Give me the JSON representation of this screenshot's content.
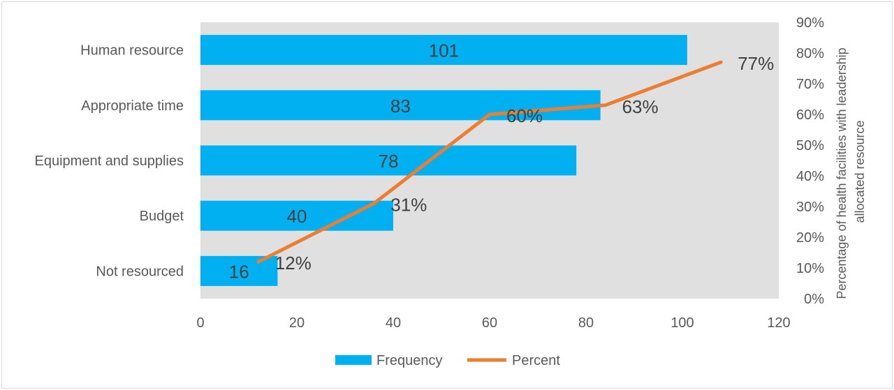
{
  "chart_data": {
    "type": "bar",
    "orientation": "horizontal",
    "categories": [
      "Not resourced",
      "Budget",
      "Equipment and supplies",
      "Appropriate time",
      "Human resource"
    ],
    "series": [
      {
        "name": "Frequency",
        "kind": "bar",
        "values": [
          16,
          40,
          78,
          83,
          101
        ],
        "color": "#00b0f0",
        "data_labels": [
          "16",
          "40",
          "78",
          "83",
          "101"
        ]
      },
      {
        "name": "Percent",
        "kind": "line",
        "axis": "secondary",
        "points": [
          {
            "x": 12,
            "y": 12
          },
          {
            "x": 36,
            "y": 31
          },
          {
            "x": 60,
            "y": 60
          },
          {
            "x": 84,
            "y": 63
          },
          {
            "x": 108,
            "y": 77
          }
        ],
        "color": "#ed7d31",
        "data_labels": [
          "12%",
          "31%",
          "60%",
          "63%",
          "77%"
        ]
      }
    ],
    "xaxis": {
      "range": [
        0,
        120
      ],
      "ticks": [
        "0",
        "20",
        "40",
        "60",
        "80",
        "100",
        "120"
      ],
      "tick_values": [
        0,
        20,
        40,
        60,
        80,
        100,
        120
      ]
    },
    "y2axis": {
      "label": "Percentage of health facilities with leadership allocated resource",
      "label_lines": [
        "Percentage of health facilities with leadership",
        "allocated resource"
      ],
      "range": [
        0,
        90
      ],
      "ticks": [
        "0%",
        "10%",
        "20%",
        "30%",
        "40%",
        "50%",
        "60%",
        "70%",
        "80%",
        "90%"
      ],
      "tick_values": [
        0,
        10,
        20,
        30,
        40,
        50,
        60,
        70,
        80,
        90
      ]
    },
    "legend": {
      "position": "bottom",
      "items": [
        {
          "label": "Frequency",
          "color": "#00b0f0",
          "symbol": "bar"
        },
        {
          "label": "Percent",
          "color": "#ed7d31",
          "symbol": "line"
        }
      ]
    },
    "plot_background": "#e0e0e0",
    "grid": false
  }
}
